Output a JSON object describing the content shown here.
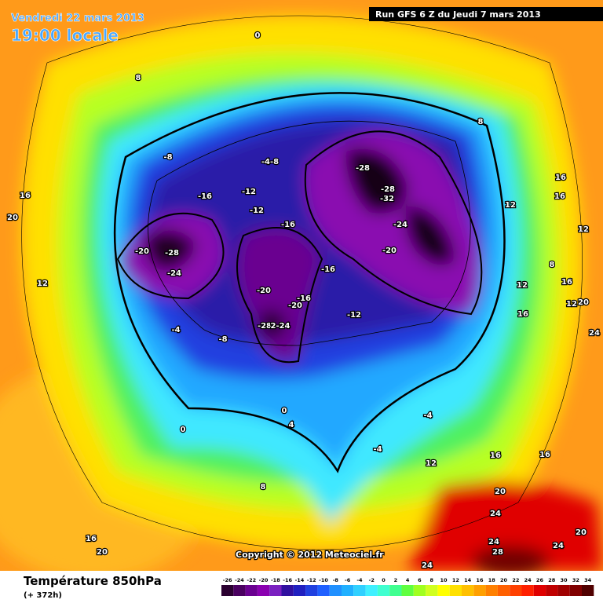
{
  "header": {
    "date": "Vendredi 22 mars 2013",
    "time": "19:00 locale",
    "run": "Run GFS 6 Z du Jeudi 7 mars 2013"
  },
  "footer": {
    "title": "Température 850hPa",
    "subtitle": "(+ 372h)",
    "copyright": "Copyright © 2012 Meteociel.fr"
  },
  "legend": {
    "labels": [
      "-26",
      "-24",
      "-22",
      "-20",
      "-18",
      "-16",
      "-14",
      "-12",
      "-10",
      "-8",
      "-6",
      "-4",
      "-2",
      "0",
      "2",
      "4",
      "6",
      "8",
      "10",
      "12",
      "14",
      "16",
      "18",
      "20",
      "22",
      "24",
      "26",
      "28",
      "30",
      "32",
      "34"
    ],
    "colors": [
      "#2a0030",
      "#4a0060",
      "#6a0090",
      "#8a00b0",
      "#7a20c0",
      "#3010a0",
      "#2020c0",
      "#2040e0",
      "#2060ff",
      "#2090ff",
      "#20b0ff",
      "#30d0ff",
      "#40f0ff",
      "#40ffd0",
      "#40ff90",
      "#60ff40",
      "#a0ff20",
      "#d0ff20",
      "#ffff00",
      "#ffe000",
      "#ffc000",
      "#ffa000",
      "#ff8000",
      "#ff6000",
      "#ff4000",
      "#ff2000",
      "#e00000",
      "#c00000",
      "#a00000",
      "#800000",
      "#500000"
    ]
  },
  "contour_labels": [
    "0",
    "8",
    "8",
    "-8",
    "-4-8",
    "-16",
    "-12",
    "-12",
    "-16",
    "-28",
    "-28",
    "-32",
    "-24",
    "-20",
    "-20",
    "-28",
    "-24",
    "-16",
    "-20",
    "-20",
    "-16",
    "-12",
    "-28",
    "2-24",
    "-4",
    "-8",
    "12",
    "16",
    "20",
    "0",
    "4",
    "0",
    "-4",
    "-4",
    "12",
    "16",
    "16",
    "8",
    "20",
    "24",
    "24",
    "28",
    "24",
    "20",
    "24",
    "20",
    "16",
    "16",
    "16",
    "12",
    "12",
    "20",
    "12",
    "16",
    "16",
    "12",
    "8",
    "24"
  ]
}
